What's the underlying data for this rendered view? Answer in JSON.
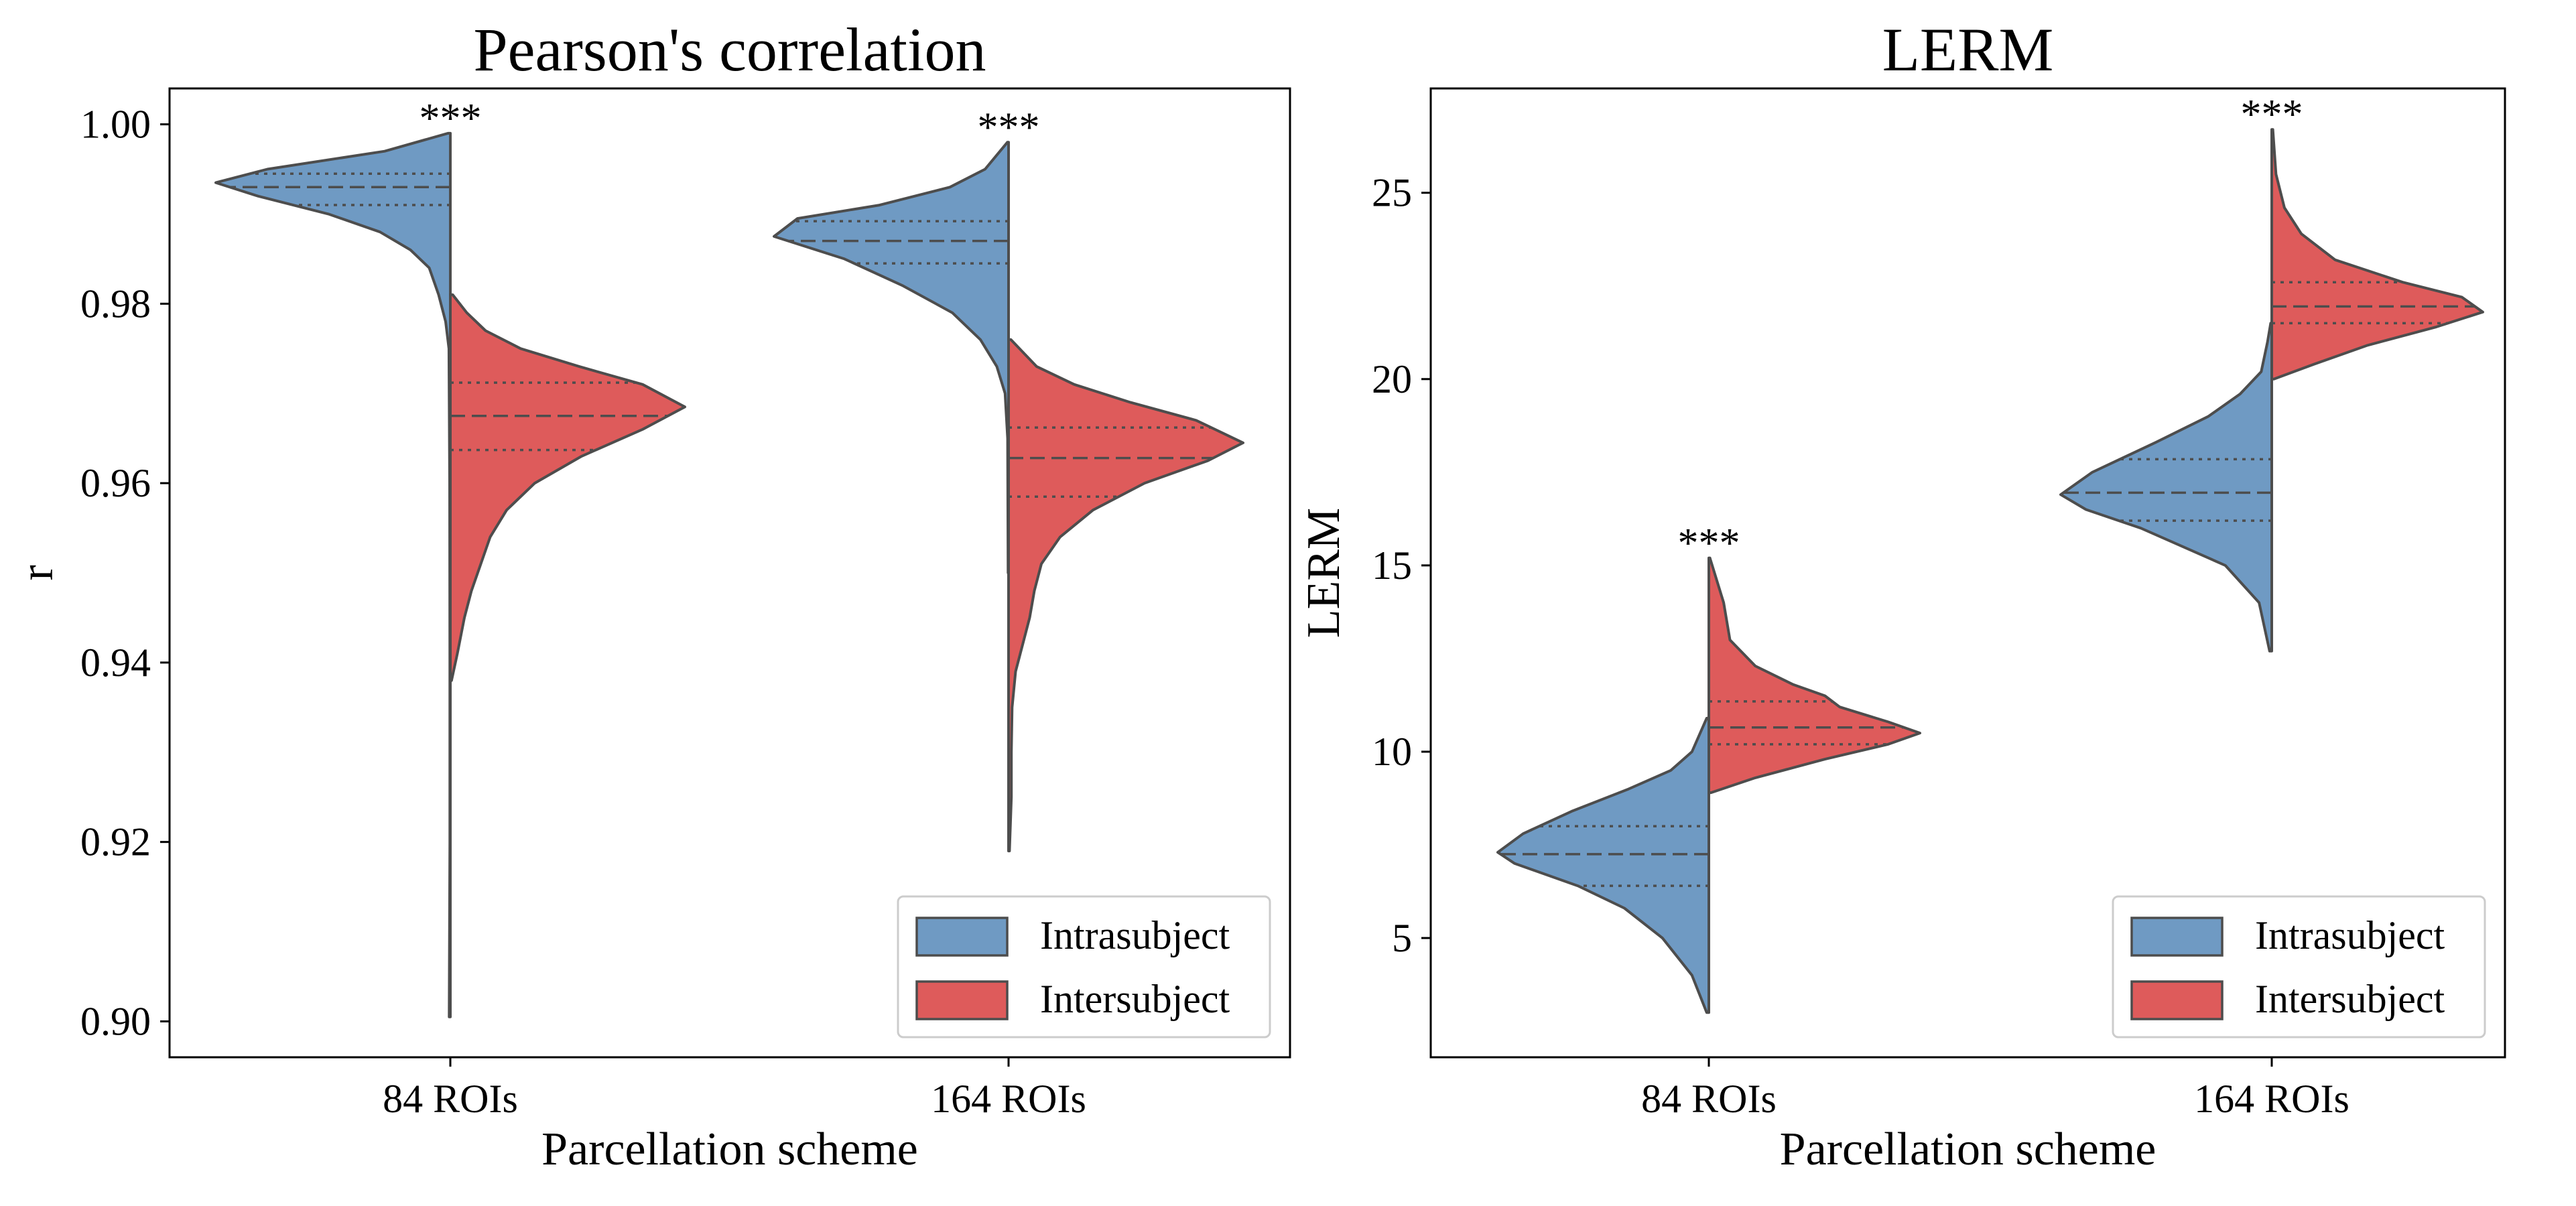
{
  "chart_data": [
    {
      "type": "violin",
      "title": "Pearson's correlation",
      "xlabel": "Parcellation scheme",
      "ylabel": "r",
      "categories": [
        "84 ROIs",
        "164 ROIs"
      ],
      "ylim": [
        0.896,
        1.004
      ],
      "yticks": [
        0.9,
        0.92,
        0.94,
        0.96,
        0.98,
        1.0
      ],
      "ytick_labels": [
        "0.90",
        "0.92",
        "0.94",
        "0.96",
        "0.98",
        "1.00"
      ],
      "legend": {
        "position": "lower right",
        "entries": [
          "Intrasubject",
          "Intersubject"
        ]
      },
      "significance": [
        "***",
        "***"
      ],
      "series": [
        {
          "name": "Intrasubject",
          "color": "#6f9ac3",
          "side": "left",
          "groups": [
            {
              "category": "84 ROIs",
              "min": 0.9005,
              "max": 0.999,
              "q1": 0.991,
              "median": 0.993,
              "q3": 0.9945,
              "profile": [
                [
                  0.9005,
                  0.005
                ],
                [
                  0.92,
                  0.002
                ],
                [
                  0.94,
                  0.002
                ],
                [
                  0.96,
                  0.003
                ],
                [
                  0.975,
                  0.006
                ],
                [
                  0.978,
                  0.02
                ],
                [
                  0.981,
                  0.05
                ],
                [
                  0.984,
                  0.09
                ],
                [
                  0.986,
                  0.17
                ],
                [
                  0.988,
                  0.3
                ],
                [
                  0.99,
                  0.52
                ],
                [
                  0.992,
                  0.82
                ],
                [
                  0.9935,
                  1.0
                ],
                [
                  0.995,
                  0.78
                ],
                [
                  0.997,
                  0.28
                ],
                [
                  0.999,
                  0.01
                ]
              ]
            },
            {
              "category": "164 ROIs",
              "min": 0.95,
              "max": 0.998,
              "q1": 0.9845,
              "median": 0.987,
              "q3": 0.9892,
              "profile": [
                [
                  0.95,
                  0.002
                ],
                [
                  0.965,
                  0.004
                ],
                [
                  0.97,
                  0.015
                ],
                [
                  0.973,
                  0.05
                ],
                [
                  0.976,
                  0.12
                ],
                [
                  0.979,
                  0.24
                ],
                [
                  0.982,
                  0.45
                ],
                [
                  0.985,
                  0.7
                ],
                [
                  0.9875,
                  1.0
                ],
                [
                  0.9895,
                  0.9
                ],
                [
                  0.991,
                  0.55
                ],
                [
                  0.993,
                  0.25
                ],
                [
                  0.995,
                  0.1
                ],
                [
                  0.998,
                  0.005
                ]
              ]
            }
          ]
        },
        {
          "name": "Intersubject",
          "color": "#de5b5b",
          "side": "right",
          "groups": [
            {
              "category": "84 ROIs",
              "min": 0.938,
              "max": 0.981,
              "q1": 0.9637,
              "median": 0.9675,
              "q3": 0.9712,
              "profile": [
                [
                  0.938,
                  0.005
                ],
                [
                  0.941,
                  0.03
                ],
                [
                  0.945,
                  0.06
                ],
                [
                  0.948,
                  0.09
                ],
                [
                  0.951,
                  0.13
                ],
                [
                  0.954,
                  0.17
                ],
                [
                  0.957,
                  0.24
                ],
                [
                  0.96,
                  0.36
                ],
                [
                  0.963,
                  0.56
                ],
                [
                  0.966,
                  0.82
                ],
                [
                  0.9685,
                  1.0
                ],
                [
                  0.971,
                  0.82
                ],
                [
                  0.973,
                  0.55
                ],
                [
                  0.975,
                  0.3
                ],
                [
                  0.977,
                  0.15
                ],
                [
                  0.979,
                  0.07
                ],
                [
                  0.981,
                  0.01
                ]
              ]
            },
            {
              "category": "164 ROIs",
              "min": 0.919,
              "max": 0.976,
              "q1": 0.9585,
              "median": 0.9628,
              "q3": 0.9662,
              "profile": [
                [
                  0.919,
                  0.004
                ],
                [
                  0.925,
                  0.012
                ],
                [
                  0.93,
                  0.012
                ],
                [
                  0.935,
                  0.015
                ],
                [
                  0.939,
                  0.03
                ],
                [
                  0.942,
                  0.06
                ],
                [
                  0.945,
                  0.09
                ],
                [
                  0.948,
                  0.11
                ],
                [
                  0.951,
                  0.14
                ],
                [
                  0.954,
                  0.22
                ],
                [
                  0.957,
                  0.36
                ],
                [
                  0.96,
                  0.58
                ],
                [
                  0.9625,
                  0.85
                ],
                [
                  0.9645,
                  1.0
                ],
                [
                  0.967,
                  0.8
                ],
                [
                  0.969,
                  0.52
                ],
                [
                  0.971,
                  0.28
                ],
                [
                  0.973,
                  0.12
                ],
                [
                  0.976,
                  0.01
                ]
              ]
            }
          ]
        }
      ]
    },
    {
      "type": "violin",
      "title": "LERM",
      "xlabel": "Parcellation scheme",
      "ylabel": "LERM",
      "categories": [
        "84 ROIs",
        "164 ROIs"
      ],
      "ylim": [
        1.8,
        27.8
      ],
      "yticks": [
        5,
        10,
        15,
        20,
        25
      ],
      "ytick_labels": [
        "5",
        "10",
        "15",
        "20",
        "25"
      ],
      "legend": {
        "position": "lower right",
        "entries": [
          "Intrasubject",
          "Intersubject"
        ]
      },
      "significance": [
        "***",
        "***"
      ],
      "series": [
        {
          "name": "Intrasubject",
          "color": "#6f9ac3",
          "side": "left",
          "groups": [
            {
              "category": "84 ROIs",
              "min": 3.0,
              "max": 10.9,
              "q1": 6.4,
              "median": 7.25,
              "q3": 8.0,
              "profile": [
                [
                  3.0,
                  0.01
                ],
                [
                  4.0,
                  0.08
                ],
                [
                  5.0,
                  0.22
                ],
                [
                  5.8,
                  0.4
                ],
                [
                  6.4,
                  0.62
                ],
                [
                  7.0,
                  0.92
                ],
                [
                  7.3,
                  1.0
                ],
                [
                  7.8,
                  0.88
                ],
                [
                  8.4,
                  0.65
                ],
                [
                  9.0,
                  0.38
                ],
                [
                  9.5,
                  0.18
                ],
                [
                  10.0,
                  0.08
                ],
                [
                  10.9,
                  0.01
                ]
              ]
            },
            {
              "category": "164 ROIs",
              "min": 12.7,
              "max": 21.5,
              "q1": 16.2,
              "median": 16.95,
              "q3": 17.85,
              "profile": [
                [
                  12.7,
                  0.01
                ],
                [
                  14.0,
                  0.06
                ],
                [
                  15.0,
                  0.22
                ],
                [
                  16.0,
                  0.62
                ],
                [
                  16.5,
                  0.88
                ],
                [
                  16.9,
                  1.0
                ],
                [
                  17.5,
                  0.85
                ],
                [
                  18.3,
                  0.55
                ],
                [
                  19.0,
                  0.3
                ],
                [
                  19.6,
                  0.15
                ],
                [
                  20.2,
                  0.05
                ],
                [
                  21.0,
                  0.02
                ],
                [
                  21.5,
                  0.005
                ]
              ]
            }
          ]
        },
        {
          "name": "Intersubject",
          "color": "#de5b5b",
          "side": "right",
          "groups": [
            {
              "category": "84 ROIs",
              "min": 8.9,
              "max": 15.2,
              "q1": 10.2,
              "median": 10.65,
              "q3": 11.35,
              "profile": [
                [
                  8.9,
                  0.01
                ],
                [
                  9.3,
                  0.22
                ],
                [
                  9.8,
                  0.55
                ],
                [
                  10.2,
                  0.85
                ],
                [
                  10.5,
                  1.0
                ],
                [
                  10.8,
                  0.85
                ],
                [
                  11.2,
                  0.62
                ],
                [
                  11.5,
                  0.55
                ],
                [
                  11.8,
                  0.4
                ],
                [
                  12.3,
                  0.22
                ],
                [
                  13.0,
                  0.1
                ],
                [
                  14.0,
                  0.07
                ],
                [
                  15.2,
                  0.005
                ]
              ]
            },
            {
              "category": "164 ROIs",
              "min": 20.0,
              "max": 26.7,
              "q1": 21.5,
              "median": 21.95,
              "q3": 22.6,
              "profile": [
                [
                  20.0,
                  0.01
                ],
                [
                  20.4,
                  0.2
                ],
                [
                  20.9,
                  0.45
                ],
                [
                  21.4,
                  0.78
                ],
                [
                  21.8,
                  1.0
                ],
                [
                  22.2,
                  0.9
                ],
                [
                  22.6,
                  0.62
                ],
                [
                  23.2,
                  0.3
                ],
                [
                  23.9,
                  0.14
                ],
                [
                  24.6,
                  0.06
                ],
                [
                  25.5,
                  0.02
                ],
                [
                  26.7,
                  0.005
                ]
              ]
            }
          ]
        }
      ]
    }
  ]
}
